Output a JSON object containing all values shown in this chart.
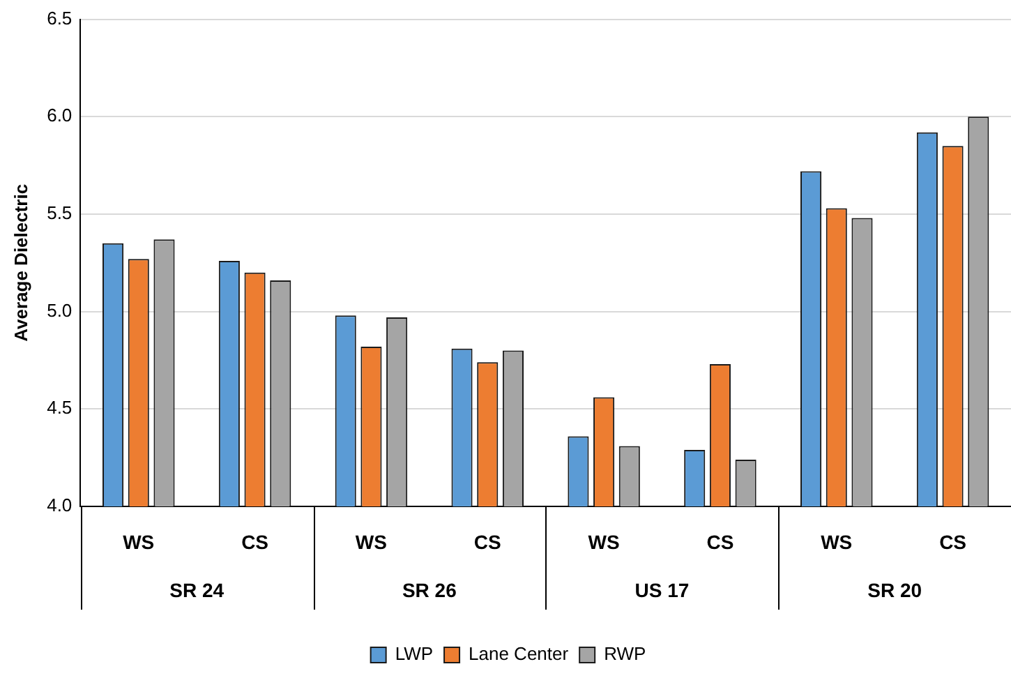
{
  "chart_data": {
    "type": "bar",
    "ylabel": "Average Dielectric",
    "categories": [
      "WS",
      "CS",
      "WS",
      "CS",
      "WS",
      "CS",
      "WS",
      "CS"
    ],
    "series": [
      {
        "name": "LWP",
        "color": "#5b9bd5",
        "values": [
          5.35,
          5.26,
          4.98,
          4.81,
          4.36,
          4.29,
          5.72,
          5.92
        ]
      },
      {
        "name": "Lane Center",
        "color": "#ed7d31",
        "values": [
          5.27,
          5.2,
          4.82,
          4.74,
          4.56,
          4.73,
          5.53,
          5.85
        ]
      },
      {
        "name": "RWP",
        "color": "#a5a5a5",
        "values": [
          5.37,
          5.16,
          4.97,
          4.8,
          4.31,
          4.24,
          5.48,
          6.0
        ]
      }
    ],
    "annotations": [
      "SR 24",
      "SR 26",
      "US 17",
      "SR 20"
    ],
    "ylim": [
      4.0,
      6.5
    ],
    "yticks": [
      {
        "value": 4.0,
        "label": "4.0"
      },
      {
        "value": 4.5,
        "label": "4.5"
      },
      {
        "value": 5.0,
        "label": "5.0"
      },
      {
        "value": 5.5,
        "label": "5.5"
      },
      {
        "value": 6.0,
        "label": "6.0"
      },
      {
        "value": 6.5,
        "label": "6.5"
      }
    ],
    "grid": "y",
    "legend": "bottom"
  }
}
